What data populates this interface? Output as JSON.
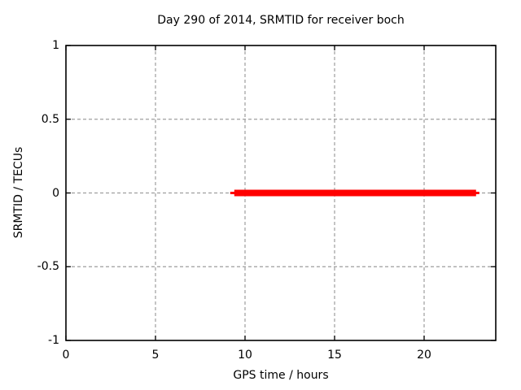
{
  "chart_data": {
    "type": "line",
    "title": "Day 290 of 2014, SRMTID for receiver boch",
    "xlabel": "GPS time / hours",
    "ylabel": "SRMTID / TECUs",
    "xlim": [
      0,
      24
    ],
    "ylim": [
      -1,
      1
    ],
    "xticks": [
      0,
      5,
      10,
      15,
      20
    ],
    "yticks": [
      -1,
      -0.5,
      0,
      0.5,
      1
    ],
    "grid": true,
    "legend": "none",
    "colors": {
      "series": "#ff0000",
      "grid": "#9e9e9e",
      "frame": "#000000",
      "background": "#ffffff"
    },
    "series": [
      {
        "name": "SRMTID",
        "style": "thick-line",
        "points": [
          [
            9.4,
            0
          ],
          [
            22.9,
            0
          ]
        ]
      }
    ]
  }
}
